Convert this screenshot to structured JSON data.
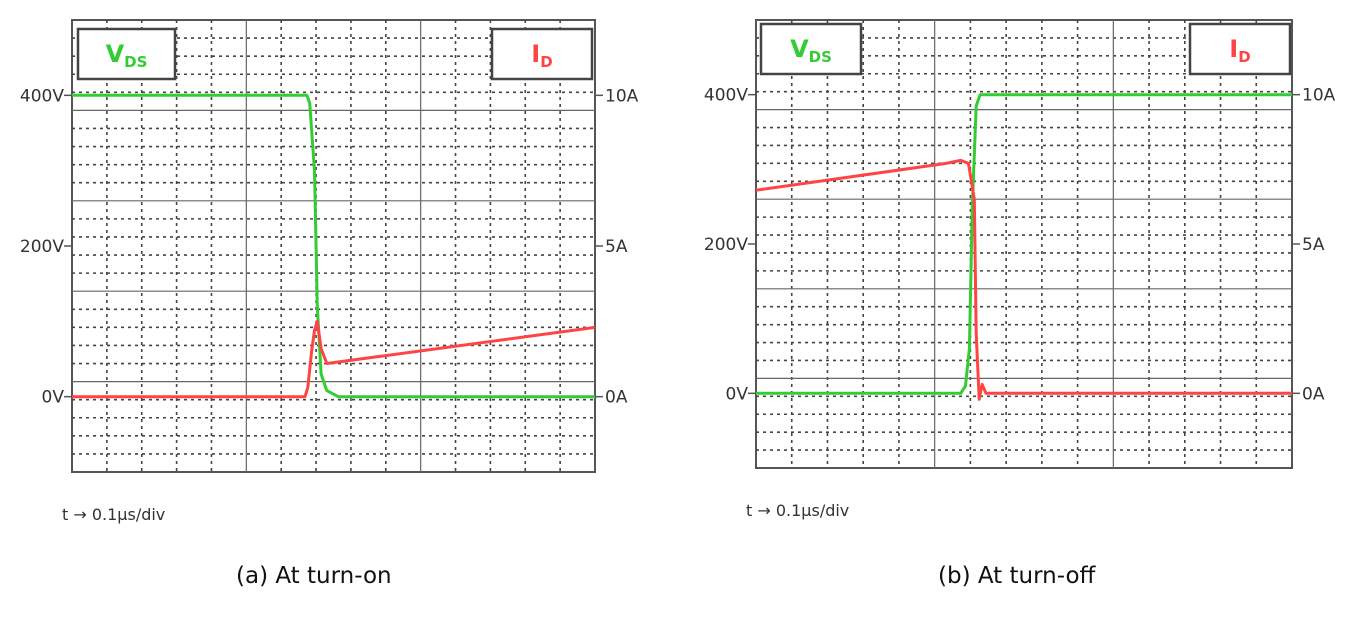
{
  "chart_data": [
    {
      "type": "line",
      "caption": "(a) At turn-on",
      "time_scale_label": "t → 0.1μs/div",
      "left_axis": {
        "unit": "V",
        "tick_labels": [
          "400V",
          "200V",
          "0V"
        ],
        "ticks": [
          400,
          200,
          0
        ],
        "ylim": [
          -100,
          500
        ]
      },
      "right_axis": {
        "unit": "A",
        "tick_labels": [
          "10A",
          "5A",
          "0A"
        ],
        "ticks": [
          10,
          5,
          0
        ],
        "ylim": [
          -2.5,
          12.5
        ]
      },
      "x_unit": "μs",
      "xlim": [
        0,
        0.55
      ],
      "grid": true,
      "series": [
        {
          "name": "V",
          "name_sub": "DS",
          "color": "#33cc33",
          "axis": "left",
          "x": [
            0,
            0.247,
            0.25,
            0.255,
            0.258,
            0.262,
            0.268,
            0.28,
            0.55
          ],
          "y": [
            400,
            400,
            390,
            300,
            120,
            30,
            8,
            0,
            0
          ]
        },
        {
          "name": "I",
          "name_sub": "D",
          "color": "#ff4444",
          "axis": "right",
          "x": [
            0,
            0.245,
            0.248,
            0.252,
            0.255,
            0.258,
            0.262,
            0.268,
            0.55
          ],
          "y": [
            0,
            0,
            0.3,
            1.5,
            2.2,
            2.5,
            1.6,
            1.1,
            2.3
          ]
        }
      ]
    },
    {
      "type": "line",
      "caption": "(b) At turn-off",
      "time_scale_label": "t → 0.1μs/div",
      "left_axis": {
        "unit": "V",
        "tick_labels": [
          "400V",
          "200V",
          "0V"
        ],
        "ticks": [
          400,
          200,
          0
        ],
        "ylim": [
          -100,
          500
        ]
      },
      "right_axis": {
        "unit": "A",
        "tick_labels": [
          "10A",
          "5A",
          "0A"
        ],
        "ticks": [
          10,
          5,
          0
        ],
        "ylim": [
          -2.5,
          12.5
        ]
      },
      "x_unit": "μs",
      "xlim": [
        0,
        0.55
      ],
      "grid": true,
      "series": [
        {
          "name": "V",
          "name_sub": "DS",
          "color": "#33cc33",
          "axis": "left",
          "x": [
            0,
            0.21,
            0.215,
            0.219,
            0.222,
            0.226,
            0.23,
            0.55
          ],
          "y": [
            0,
            0,
            10,
            60,
            250,
            385,
            400,
            400
          ]
        },
        {
          "name": "I",
          "name_sub": "D",
          "color": "#ff4444",
          "axis": "right",
          "x": [
            0,
            0.195,
            0.21,
            0.218,
            0.224,
            0.226,
            0.229,
            0.232,
            0.236,
            0.55
          ],
          "y": [
            6.8,
            7.7,
            7.8,
            7.7,
            6.5,
            2.0,
            -0.2,
            0.3,
            0,
            0
          ]
        }
      ]
    }
  ]
}
